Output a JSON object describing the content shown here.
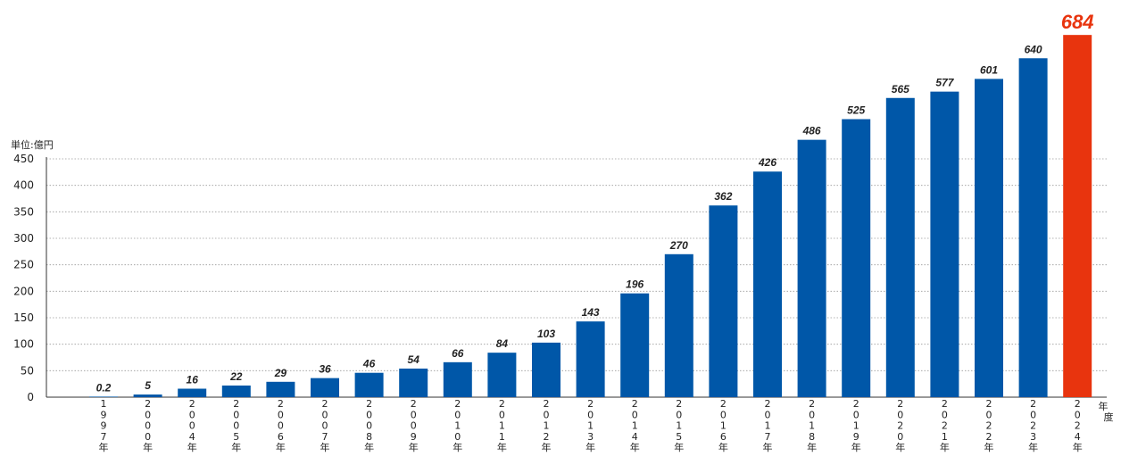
{
  "chart_data": {
    "type": "bar",
    "unit_label": "単位:億円",
    "x_unit_label": "年度",
    "yticks": [
      0,
      50,
      100,
      150,
      200,
      250,
      300,
      350,
      400,
      450
    ],
    "ylim": [
      0,
      450
    ],
    "grid": true,
    "categories": [
      "1997年",
      "2000年",
      "2004年",
      "2005年",
      "2006年",
      "2007年",
      "2008年",
      "2009年",
      "2010年",
      "2011年",
      "2012年",
      "2013年",
      "2014年",
      "2015年",
      "2016年",
      "2017年",
      "2018年",
      "2019年",
      "2020年",
      "2021年",
      "2022年",
      "2023年",
      "2024年"
    ],
    "values": [
      0.2,
      5,
      16,
      22,
      29,
      36,
      46,
      54,
      66,
      84,
      103,
      143,
      196,
      270,
      362,
      426,
      486,
      525,
      565,
      577,
      601,
      640,
      684
    ],
    "value_labels": [
      "0.2",
      "5",
      "16",
      "22",
      "29",
      "36",
      "46",
      "54",
      "66",
      "84",
      "103",
      "143",
      "196",
      "270",
      "362",
      "426",
      "486",
      "525",
      "565",
      "577",
      "601",
      "640",
      "684"
    ],
    "bar_color": "#0057a8",
    "highlight_color": "#e8340e",
    "highlight_index": 22
  }
}
